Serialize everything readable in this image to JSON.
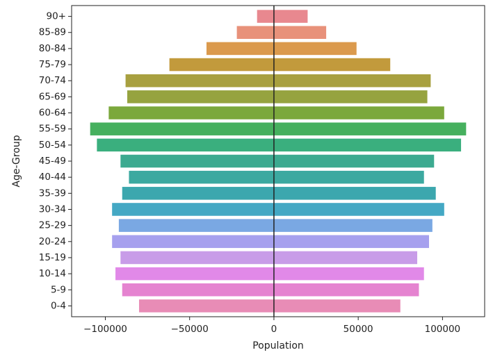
{
  "chart_data": {
    "type": "bar",
    "orientation": "horizontal",
    "stacked": "diverging",
    "xlabel": "Population",
    "ylabel": "Age-Group",
    "xlim": [
      -120000,
      125000
    ],
    "xticks": [
      -100000,
      -50000,
      0,
      50000,
      100000
    ],
    "xtick_labels": [
      "−100000",
      "−50000",
      "0",
      "50000",
      "100000"
    ],
    "grid": false,
    "zero_line": true,
    "categories": [
      "90+",
      "85-89",
      "80-84",
      "75-79",
      "70-74",
      "65-69",
      "60-64",
      "55-59",
      "50-54",
      "45-49",
      "40-44",
      "35-39",
      "30-34",
      "25-29",
      "20-24",
      "15-19",
      "10-14",
      "5-9",
      "0-4"
    ],
    "colors": [
      "#e8888f",
      "#e8917a",
      "#db9a4d",
      "#c29a3c",
      "#a8a040",
      "#96a33f",
      "#7ba83c",
      "#46b05e",
      "#3aaf7e",
      "#3caa90",
      "#3ca9a0",
      "#3ca7ae",
      "#44a8c4",
      "#7aa8e3",
      "#a6a0ee",
      "#c89ce8",
      "#e189e8",
      "#e583d0",
      "#e88cb6"
    ],
    "series": [
      {
        "values": [
          -10000,
          -22000,
          -40000,
          -62000,
          -88000,
          -87000,
          -98000,
          -109000,
          -105000,
          -91000,
          -86000,
          -90000,
          -96000,
          -92000,
          -96000,
          -91000,
          -94000,
          -90000,
          -80000
        ]
      },
      {
        "values": [
          20000,
          31000,
          49000,
          69000,
          93000,
          91000,
          101000,
          114000,
          111000,
          95000,
          89000,
          96000,
          101000,
          94000,
          92000,
          85000,
          89000,
          86000,
          75000
        ]
      }
    ]
  }
}
